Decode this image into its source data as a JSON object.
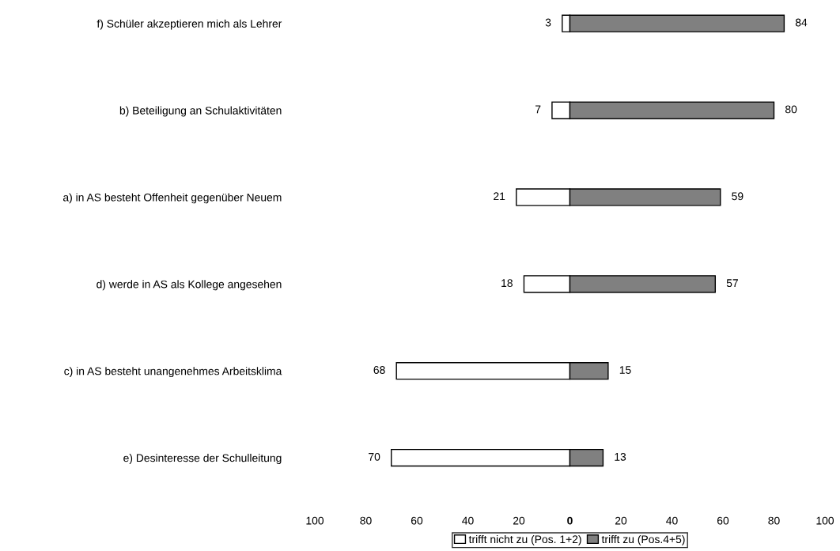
{
  "chart_data": {
    "type": "bar",
    "orientation": "horizontal",
    "categories": [
      "f) Schüler akzeptieren mich als Lehrer",
      "b) Beteiligung an Schulaktivitäten",
      "a) in AS besteht Offenheit gegenüber Neuem",
      "d) werde in AS als Kollege angesehen",
      "c) in AS besteht unangenehmes Arbeitsklima",
      "e) Desinteresse der Schulleitung"
    ],
    "series": [
      {
        "name": "trifft nicht zu (Pos. 1+2)",
        "color": "#ffffff",
        "values": [
          3,
          7,
          21,
          18,
          68,
          70
        ],
        "base": [
          -3,
          -7,
          -21,
          -18,
          -68,
          -70
        ],
        "value_labels": [
          "3",
          "7",
          "21",
          "18",
          "68",
          "70"
        ]
      },
      {
        "name": "trifft zu (Pos.4+5)",
        "color": "#808080",
        "values": [
          84,
          80,
          59,
          57,
          15,
          13
        ],
        "value_labels": [
          "84",
          "80",
          "59",
          "57",
          "15",
          "13"
        ]
      }
    ],
    "xlim": [
      -100,
      100
    ],
    "xticks": [
      {
        "value": -100,
        "label": "100"
      },
      {
        "value": -80,
        "label": "80"
      },
      {
        "value": -60,
        "label": "60"
      },
      {
        "value": -40,
        "label": "40"
      },
      {
        "value": -20,
        "label": "20"
      },
      0,
      20,
      40,
      60,
      80,
      100
    ],
    "legend": "bottom",
    "grid": false
  }
}
